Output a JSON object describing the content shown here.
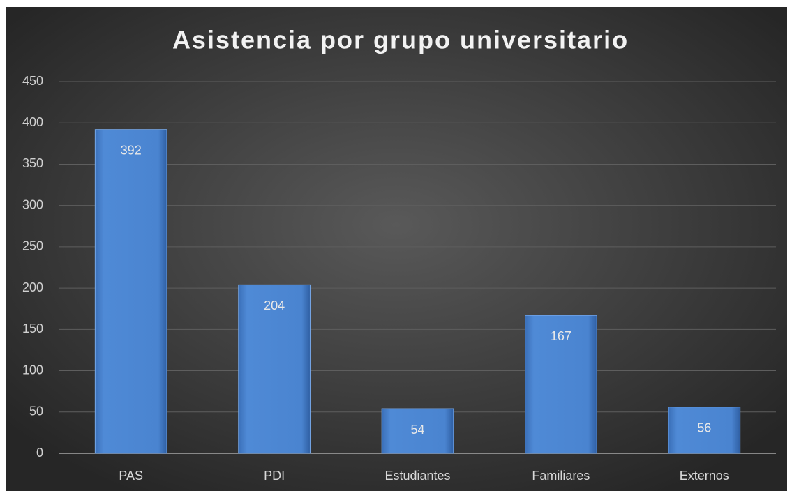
{
  "chart_data": {
    "type": "bar",
    "title": "Asistencia por grupo universitario",
    "categories": [
      "PAS",
      "PDI",
      "Estudiantes",
      "Familiares",
      "Externos"
    ],
    "values": [
      392,
      204,
      54,
      167,
      56
    ],
    "color": "#4a86d4",
    "ylim": [
      0,
      450
    ],
    "yticks": [
      0,
      50,
      100,
      150,
      200,
      250,
      300,
      350,
      400,
      450
    ],
    "grid": true
  }
}
